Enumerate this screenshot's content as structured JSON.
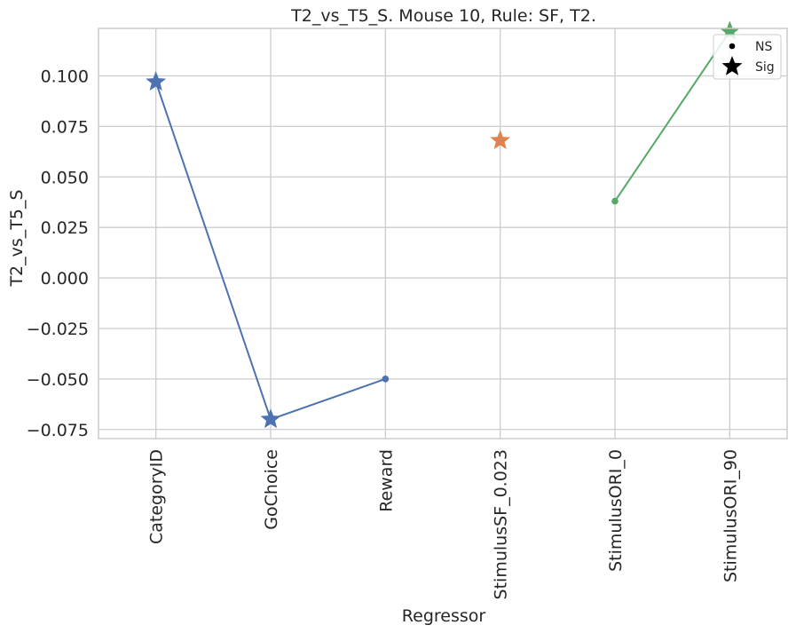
{
  "chart_data": {
    "type": "line",
    "title": "T2_vs_T5_S. Mouse 10, Rule: SF, T2.",
    "xlabel": "Regressor",
    "ylabel": "T2_vs_T5_S",
    "categories": [
      "CategoryID",
      "GoChoice",
      "Reward",
      "StimulusSF_0.023",
      "StimulusORI_0",
      "StimulusORI_90"
    ],
    "ylim": [
      -0.0795,
      0.1235
    ],
    "yticks": [
      -0.075,
      -0.05,
      -0.025,
      0.0,
      0.025,
      0.05,
      0.075,
      0.1
    ],
    "ytick_labels": [
      "−0.075",
      "−0.050",
      "−0.025",
      "0.000",
      "0.025",
      "0.050",
      "0.075",
      "0.100"
    ],
    "grid": true,
    "legend_position": "top-right",
    "legend": [
      {
        "label": "NS",
        "marker": "dot"
      },
      {
        "label": "Sig",
        "marker": "star"
      }
    ],
    "series": [
      {
        "color": "#4c72b0",
        "points": [
          {
            "category": "CategoryID",
            "value": 0.097,
            "sig": true
          },
          {
            "category": "GoChoice",
            "value": -0.07,
            "sig": true
          },
          {
            "category": "Reward",
            "value": -0.05,
            "sig": false
          }
        ]
      },
      {
        "color": "#dd8452",
        "points": [
          {
            "category": "StimulusSF_0.023",
            "value": 0.068,
            "sig": true
          }
        ]
      },
      {
        "color": "#55a868",
        "points": [
          {
            "category": "StimulusORI_0",
            "value": 0.038,
            "sig": false
          },
          {
            "category": "StimulusORI_90",
            "value": 0.122,
            "sig": true
          }
        ]
      }
    ]
  }
}
